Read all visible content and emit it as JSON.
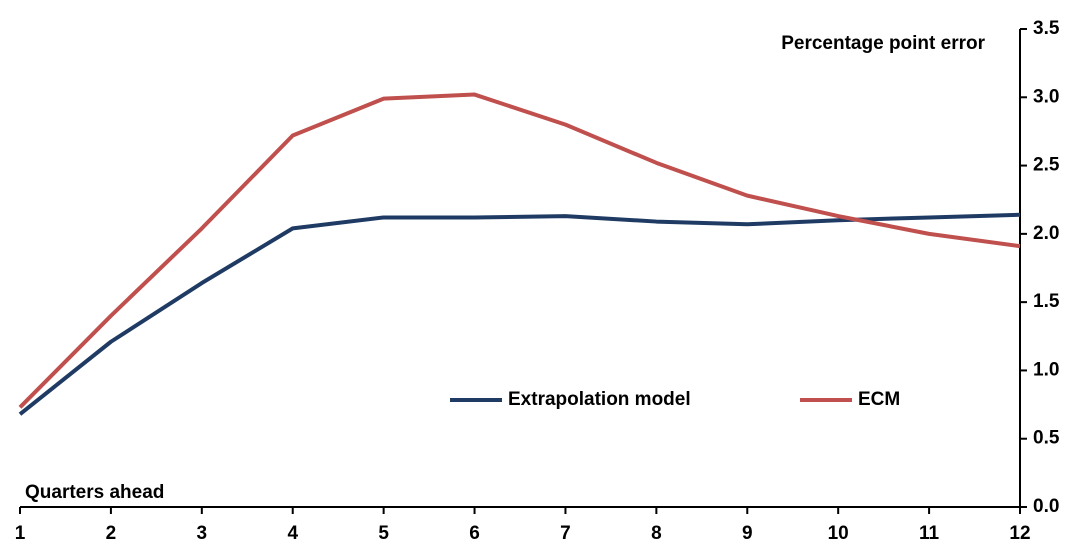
{
  "chart_data": {
    "type": "line",
    "y_label": "Percentage point  error",
    "x_label": "Quarters ahead",
    "categories": [
      "1",
      "2",
      "3",
      "4",
      "5",
      "6",
      "7",
      "8",
      "9",
      "10",
      "11",
      "12"
    ],
    "series": [
      {
        "name": "Extrapolation model",
        "color": "#1f3b64",
        "values": [
          0.68,
          1.21,
          1.64,
          2.04,
          2.12,
          2.12,
          2.13,
          2.09,
          2.07,
          2.1,
          2.12,
          2.14
        ]
      },
      {
        "name": "ECM",
        "color": "#c0504d",
        "values": [
          0.73,
          1.4,
          2.04,
          2.72,
          2.99,
          3.02,
          2.8,
          2.52,
          2.28,
          2.13,
          2.0,
          1.91
        ]
      }
    ],
    "ylim": [
      0,
      3.5
    ],
    "yticks": [
      {
        "value": 0,
        "label": "0.0"
      },
      {
        "value": 0.5,
        "label": "0.5"
      },
      {
        "value": 1,
        "label": "1.0"
      },
      {
        "value": 1.5,
        "label": "1.5"
      },
      {
        "value": 2,
        "label": "2.0"
      },
      {
        "value": 2.5,
        "label": "2.5"
      },
      {
        "value": 3,
        "label": "3.0"
      },
      {
        "value": 3.5,
        "label": "3.5"
      }
    ],
    "legend": "center"
  }
}
